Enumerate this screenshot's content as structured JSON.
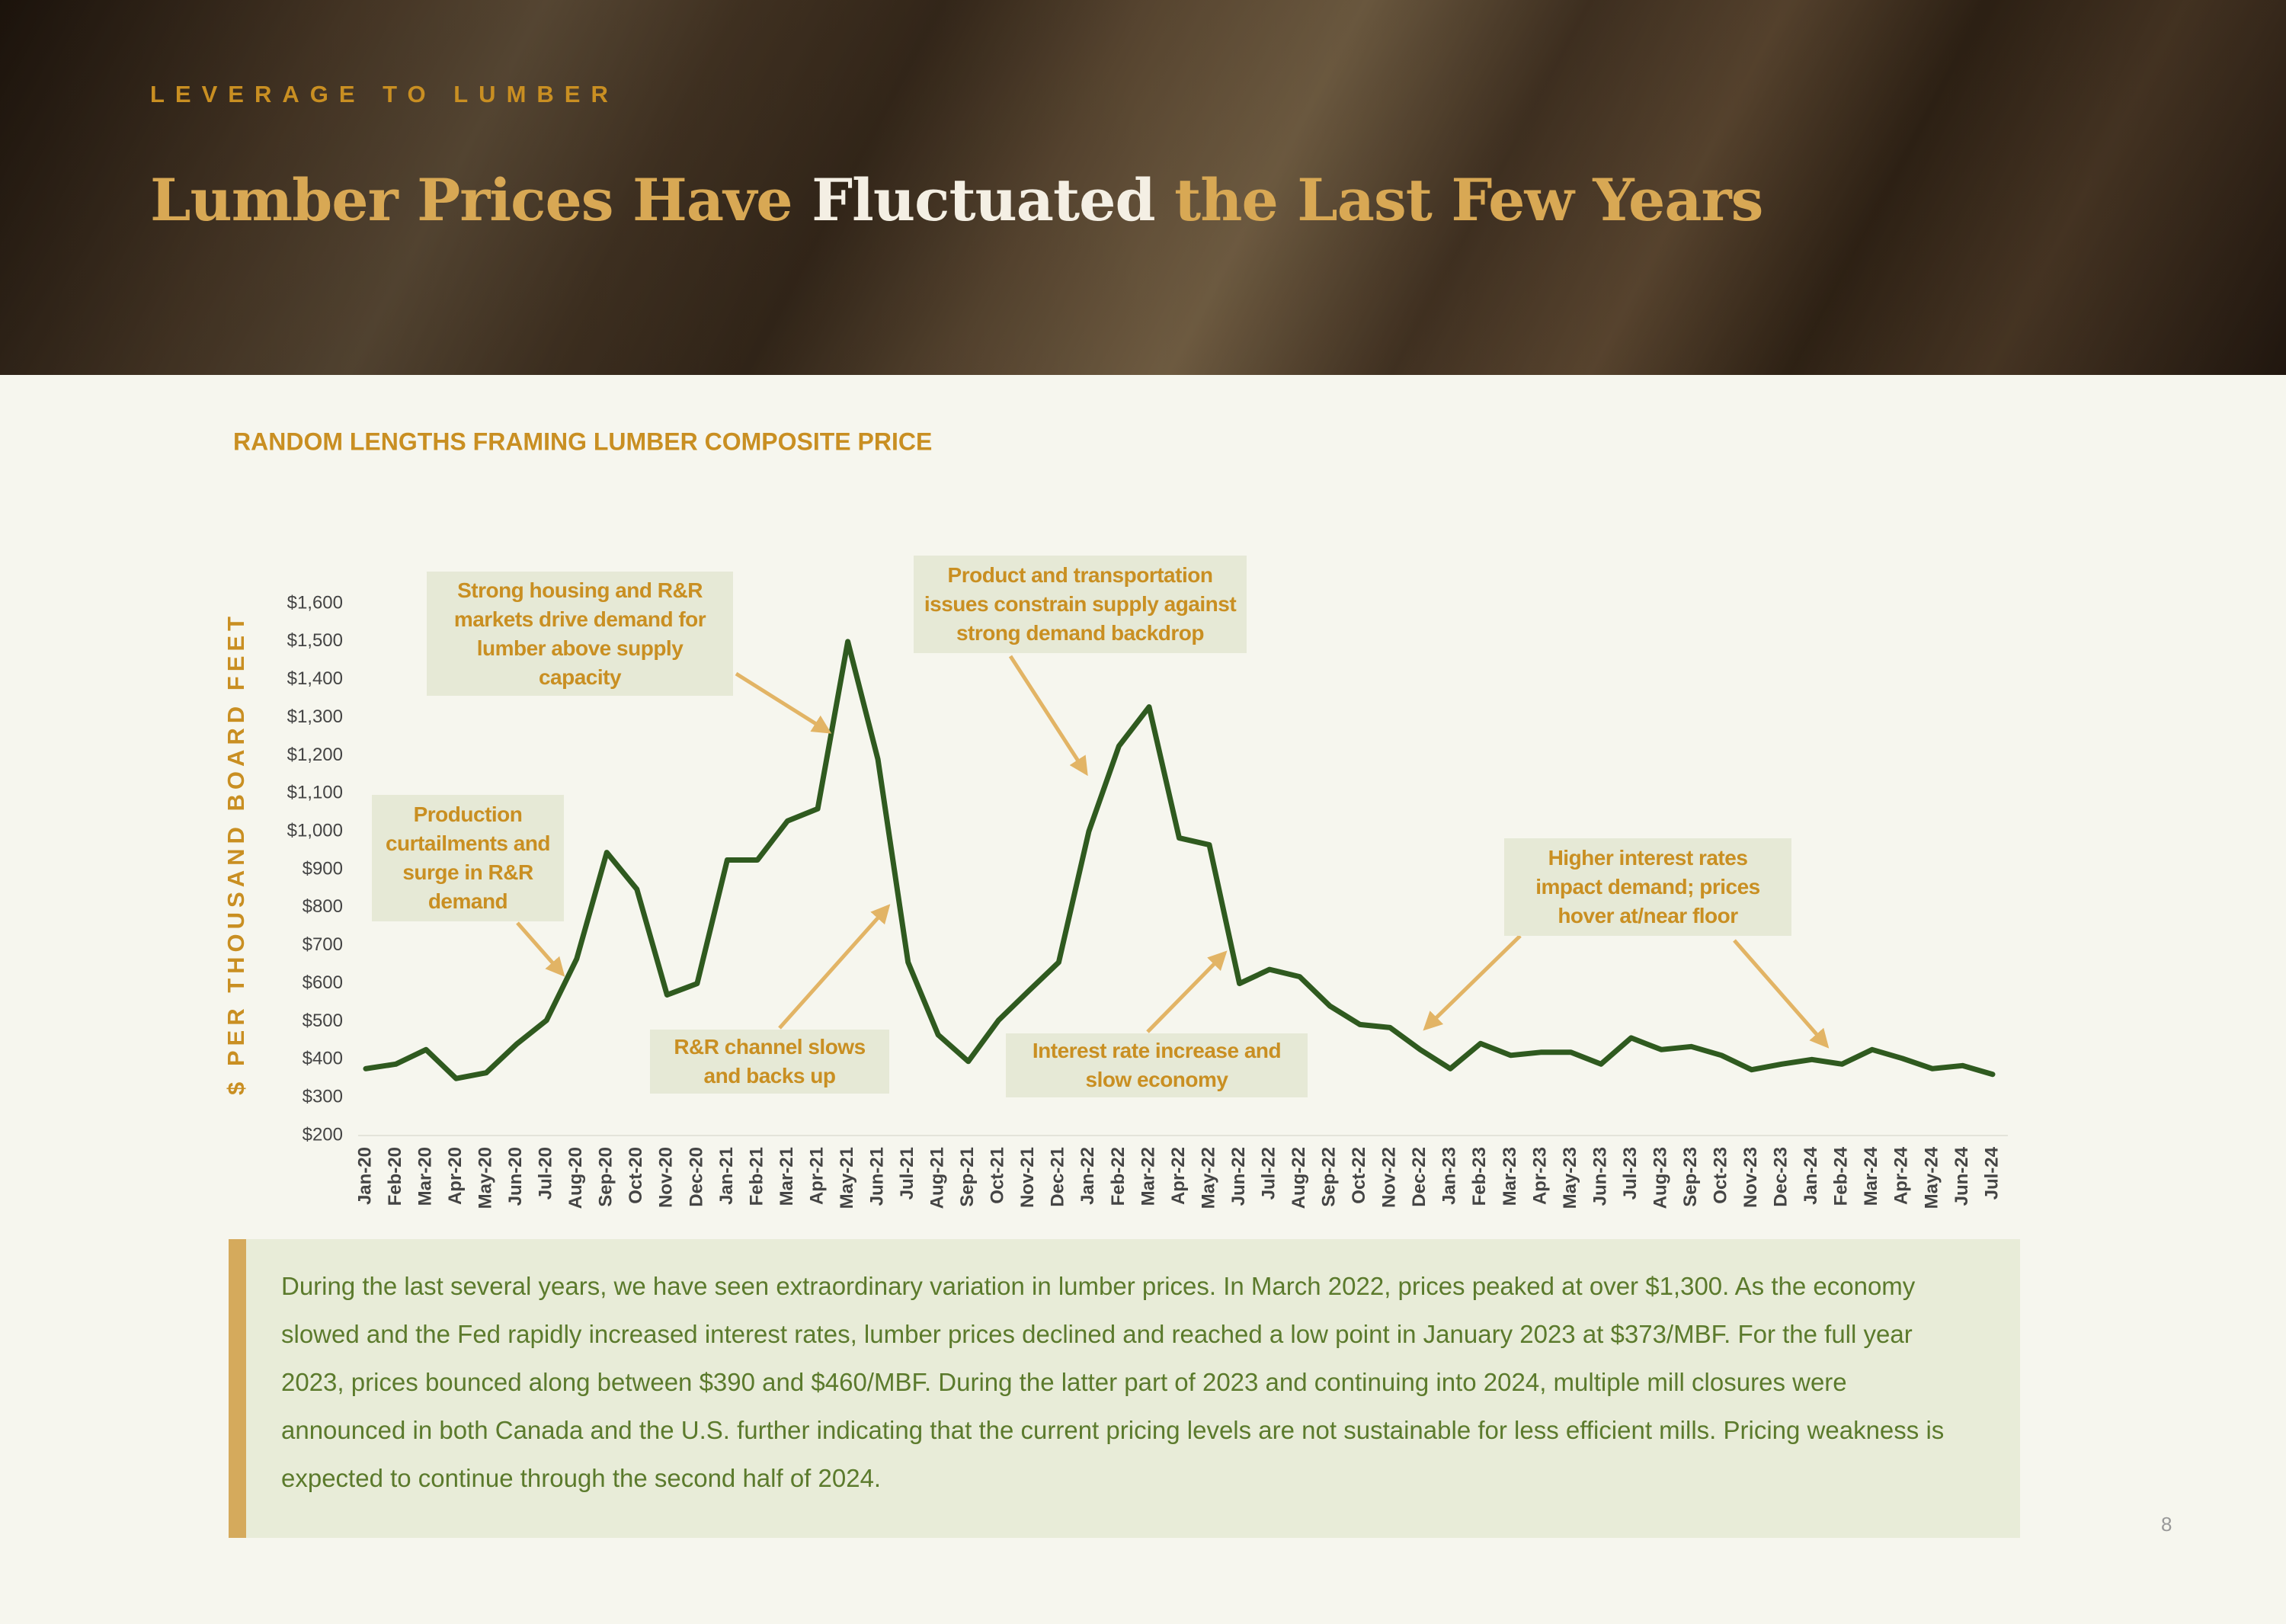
{
  "header": {
    "kicker": "LEVERAGE TO LUMBER",
    "title_parts": [
      "Lumber Prices Have",
      "Fluctuated",
      "the Last Few Years"
    ]
  },
  "chart_data": {
    "type": "line",
    "title": "RANDOM LENGTHS FRAMING LUMBER COMPOSITE PRICE",
    "y_label": "$ PER THOUSAND BOARD FEET",
    "categories": [
      "Jan-20",
      "Feb-20",
      "Mar-20",
      "Apr-20",
      "May-20",
      "Jun-20",
      "Jul-20",
      "Aug-20",
      "Sep-20",
      "Oct-20",
      "Nov-20",
      "Dec-20",
      "Jan-21",
      "Feb-21",
      "Mar-21",
      "Apr-21",
      "May-21",
      "Jun-21",
      "Jul-21",
      "Aug-21",
      "Sep-21",
      "Oct-21",
      "Nov-21",
      "Dec-21",
      "Jan-22",
      "Feb-22",
      "Mar-22",
      "Apr-22",
      "May-22",
      "Jun-22",
      "Jul-22",
      "Aug-22",
      "Sep-22",
      "Oct-22",
      "Nov-22",
      "Dec-22",
      "Jan-23",
      "Feb-23",
      "Mar-23",
      "Apr-23",
      "May-23",
      "Jun-23",
      "Jul-23",
      "Aug-23",
      "Sep-23",
      "Oct-23",
      "Nov-23",
      "Dec-23",
      "Jan-24",
      "Feb-24",
      "Mar-24",
      "Apr-24",
      "May-24",
      "Jun-24",
      "Jul-24"
    ],
    "series": [
      {
        "name": "Framing Lumber Composite Price",
        "color": "#2f5a1f",
        "values": [
          376,
          388,
          426,
          350,
          365,
          440,
          503,
          665,
          945,
          848,
          570,
          600,
          925,
          925,
          1028,
          1060,
          1500,
          1190,
          656,
          465,
          395,
          503,
          580,
          656,
          1000,
          1225,
          1328,
          983,
          965,
          600,
          637,
          618,
          541,
          492,
          484,
          426,
          376,
          442,
          411,
          419,
          419,
          388,
          457,
          426,
          434,
          411,
          373,
          388,
          400,
          388,
          426,
          403,
          376,
          384,
          361
        ]
      }
    ],
    "ylim": [
      200,
      1600
    ],
    "yticks": [
      {
        "value": 200,
        "label": "$200"
      },
      {
        "value": 300,
        "label": "$300"
      },
      {
        "value": 400,
        "label": "$400"
      },
      {
        "value": 500,
        "label": "$500"
      },
      {
        "value": 600,
        "label": "$600"
      },
      {
        "value": 700,
        "label": "$700"
      },
      {
        "value": 800,
        "label": "$800"
      },
      {
        "value": 900,
        "label": "$900"
      },
      {
        "value": 1000,
        "label": "$1,000"
      },
      {
        "value": 1100,
        "label": "$1,100"
      },
      {
        "value": 1200,
        "label": "$1,200"
      },
      {
        "value": 1300,
        "label": "$1,300"
      },
      {
        "value": 1400,
        "label": "$1,400"
      },
      {
        "value": 1500,
        "label": "$1,500"
      },
      {
        "value": 1600,
        "label": "$1,600"
      }
    ],
    "annotations": [
      {
        "text": "Strong housing and R&R markets drive demand for lumber above supply capacity"
      },
      {
        "text": "Production curtailments and surge in R&R demand"
      },
      {
        "text": "Product and transportation issues constrain supply against strong demand backdrop"
      },
      {
        "text": "R&R channel slows and backs up"
      },
      {
        "text": "Interest rate increase and slow economy"
      },
      {
        "text": "Higher interest rates impact demand; prices hover at/near floor"
      }
    ]
  },
  "commentary": "During the last several years, we have seen extraordinary variation in lumber prices. In March 2022, prices peaked at over $1,300. As the economy slowed and the Fed rapidly increased interest rates, lumber prices declined and reached a low point in January 2023 at $373/MBF. For the full year 2023, prices bounced along between $390 and $460/MBF. During the latter part of 2023 and continuing into 2024, multiple mill closures were announced in both Canada and the U.S. further indicating that the current pricing levels are not sustainable for less efficient mills. Pricing weakness is expected to continue through the second half of 2024.",
  "page_number": "8"
}
